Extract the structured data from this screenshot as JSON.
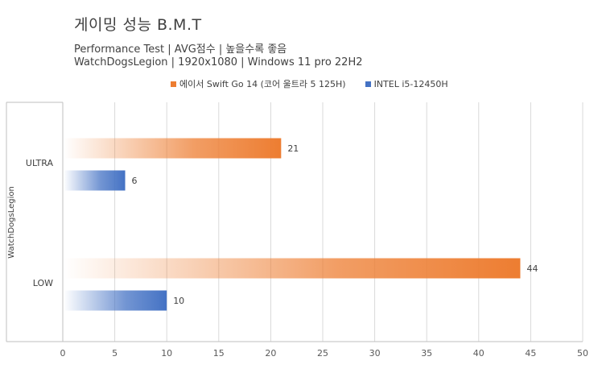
{
  "chart_data": {
    "type": "bar",
    "orientation": "horizontal",
    "title": "게이밍 성능 B.M.T",
    "subtitles": [
      "Performance Test | AVG점수 | 높을수록 좋음",
      "WatchDogsLegion | 1920x1080 | Windows 11 pro 22H2"
    ],
    "group_label": "WatchDogsLegion",
    "categories": [
      "ULTRA",
      "LOW"
    ],
    "series": [
      {
        "name": "에이서 Swift Go 14 (코어 울트라 5 125H)",
        "values": [
          21,
          44
        ],
        "color": "#ed7d31"
      },
      {
        "name": "INTEL i5-12450H",
        "values": [
          6,
          10
        ],
        "color": "#4472c4"
      }
    ],
    "xlim": [
      0,
      50
    ],
    "xticks": [
      0,
      5,
      10,
      15,
      20,
      25,
      30,
      35,
      40,
      45,
      50
    ],
    "grid": true,
    "legend_position": "top"
  }
}
